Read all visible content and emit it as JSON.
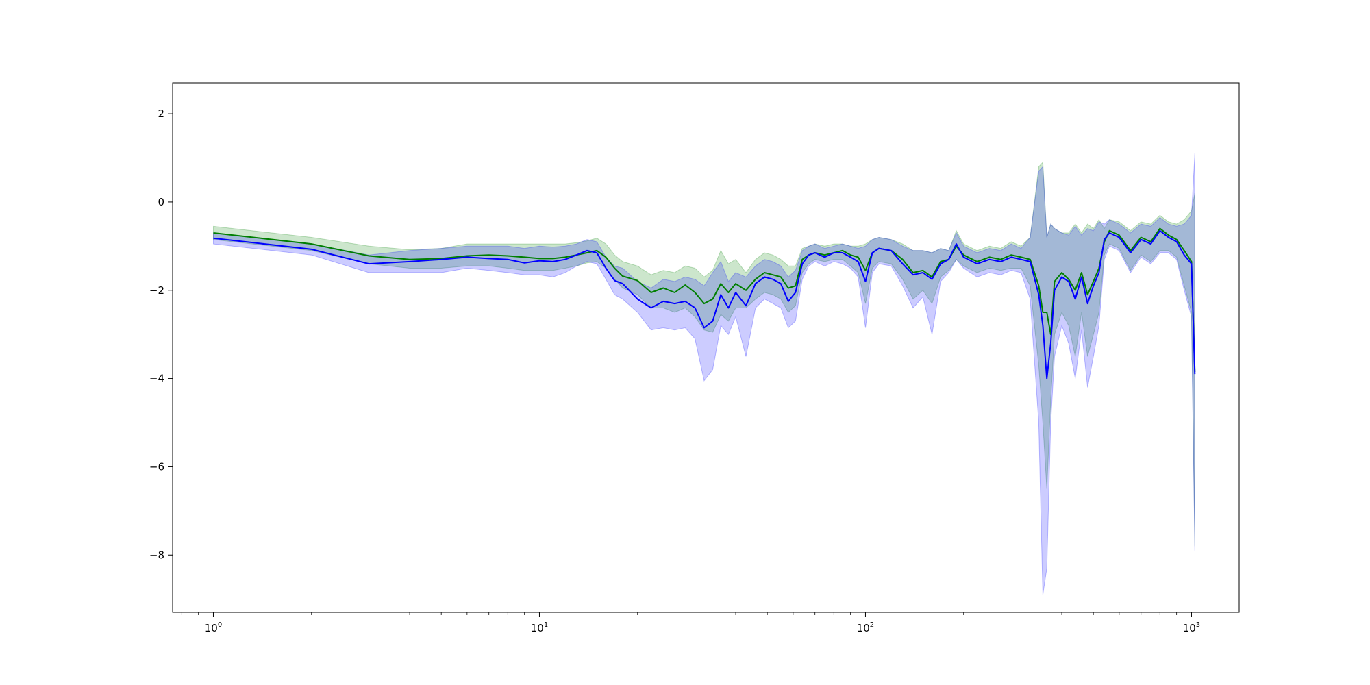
{
  "chart_data": {
    "type": "line",
    "title": "",
    "xlabel": "",
    "ylabel": "",
    "xscale": "log",
    "xlim": [
      0.75,
      1400
    ],
    "ylim": [
      -9.3,
      2.7
    ],
    "grid": false,
    "legend": "none",
    "x_tick_labels": [
      {
        "base": "10",
        "exp": "0",
        "value": 1
      },
      {
        "base": "10",
        "exp": "1",
        "value": 10
      },
      {
        "base": "10",
        "exp": "2",
        "value": 100
      },
      {
        "base": "10",
        "exp": "3",
        "value": 1000
      }
    ],
    "y_tick_labels": [
      {
        "label": "2",
        "value": 2
      },
      {
        "label": "0",
        "value": 0
      },
      {
        "label": "−2",
        "value": -2
      },
      {
        "label": "−4",
        "value": -4
      },
      {
        "label": "−6",
        "value": -6
      },
      {
        "label": "−8",
        "value": -8
      }
    ],
    "series": [
      {
        "color": "#007f00",
        "band_color": "#008000",
        "x": [
          1,
          2,
          3,
          4,
          5,
          6,
          7,
          8,
          9,
          10,
          11,
          12,
          13,
          14,
          15,
          16,
          17,
          18,
          20,
          22,
          24,
          26,
          28,
          30,
          32,
          34,
          36,
          38,
          40,
          43,
          46,
          49,
          52,
          55,
          58,
          61,
          64,
          67,
          70,
          75,
          80,
          85,
          90,
          95,
          100,
          105,
          110,
          120,
          130,
          140,
          150,
          160,
          170,
          180,
          190,
          200,
          220,
          240,
          260,
          280,
          300,
          320,
          340,
          350,
          360,
          370,
          380,
          400,
          420,
          440,
          460,
          480,
          500,
          520,
          540,
          560,
          600,
          650,
          700,
          750,
          800,
          850,
          900,
          950,
          1000,
          1024
        ],
        "y": [
          -0.7,
          -0.95,
          -1.22,
          -1.3,
          -1.28,
          -1.22,
          -1.2,
          -1.22,
          -1.25,
          -1.28,
          -1.28,
          -1.25,
          -1.2,
          -1.15,
          -1.1,
          -1.25,
          -1.5,
          -1.68,
          -1.78,
          -2.05,
          -1.95,
          -2.05,
          -1.88,
          -2.05,
          -2.3,
          -2.2,
          -1.85,
          -2.05,
          -1.85,
          -2.0,
          -1.75,
          -1.6,
          -1.65,
          -1.7,
          -1.95,
          -1.9,
          -1.3,
          -1.2,
          -1.15,
          -1.2,
          -1.15,
          -1.1,
          -1.2,
          -1.25,
          -1.55,
          -1.15,
          -1.05,
          -1.1,
          -1.3,
          -1.6,
          -1.55,
          -1.7,
          -1.35,
          -1.3,
          -1.0,
          -1.2,
          -1.35,
          -1.25,
          -1.3,
          -1.2,
          -1.25,
          -1.3,
          -1.9,
          -2.5,
          -2.5,
          -3.0,
          -1.8,
          -1.6,
          -1.75,
          -2.0,
          -1.6,
          -2.1,
          -1.8,
          -1.5,
          -0.9,
          -0.65,
          -0.75,
          -1.1,
          -0.8,
          -0.9,
          -0.6,
          -0.75,
          -0.85,
          -1.1,
          -1.35,
          -3.85
        ],
        "lower": [
          -0.85,
          -1.1,
          -1.4,
          -1.5,
          -1.5,
          -1.45,
          -1.45,
          -1.5,
          -1.55,
          -1.55,
          -1.55,
          -1.5,
          -1.45,
          -1.38,
          -1.35,
          -1.5,
          -1.75,
          -1.95,
          -2.1,
          -2.4,
          -2.4,
          -2.5,
          -2.4,
          -2.6,
          -2.9,
          -2.95,
          -2.55,
          -2.7,
          -2.4,
          -2.4,
          -2.2,
          -2.05,
          -2.1,
          -2.2,
          -2.5,
          -2.35,
          -1.6,
          -1.4,
          -1.3,
          -1.35,
          -1.3,
          -1.3,
          -1.45,
          -1.6,
          -2.3,
          -1.5,
          -1.35,
          -1.4,
          -1.75,
          -2.2,
          -2.0,
          -2.3,
          -1.7,
          -1.55,
          -1.3,
          -1.45,
          -1.6,
          -1.5,
          -1.55,
          -1.5,
          -1.5,
          -1.9,
          -3.7,
          -5.0,
          -6.5,
          -4.5,
          -3.0,
          -2.5,
          -2.8,
          -3.5,
          -2.5,
          -3.5,
          -3.0,
          -2.5,
          -1.2,
          -0.95,
          -1.05,
          -1.55,
          -1.2,
          -1.35,
          -1.1,
          -1.1,
          -1.25,
          -1.9,
          -2.5,
          -7.8
        ],
        "upper": [
          -0.55,
          -0.8,
          -1.0,
          -1.08,
          -1.05,
          -0.95,
          -0.95,
          -0.95,
          -0.95,
          -0.95,
          -0.95,
          -0.95,
          -0.92,
          -0.88,
          -0.82,
          -0.95,
          -1.2,
          -1.35,
          -1.45,
          -1.65,
          -1.55,
          -1.6,
          -1.45,
          -1.5,
          -1.7,
          -1.55,
          -1.1,
          -1.4,
          -1.3,
          -1.6,
          -1.3,
          -1.15,
          -1.2,
          -1.3,
          -1.45,
          -1.45,
          -1.05,
          -1.0,
          -0.95,
          -1.0,
          -0.95,
          -0.95,
          -1.0,
          -1.0,
          -0.95,
          -0.85,
          -0.8,
          -0.85,
          -0.95,
          -1.1,
          -1.1,
          -1.15,
          -1.05,
          -1.1,
          -0.65,
          -0.95,
          -1.1,
          -1.0,
          -1.05,
          -0.9,
          -1.0,
          -0.8,
          0.8,
          0.9,
          -0.8,
          -0.5,
          -0.6,
          -0.7,
          -0.7,
          -0.5,
          -0.7,
          -0.5,
          -0.6,
          -0.4,
          -0.6,
          -0.4,
          -0.45,
          -0.65,
          -0.45,
          -0.5,
          -0.3,
          -0.45,
          -0.5,
          -0.4,
          -0.2,
          0.2
        ]
      },
      {
        "color": "#0000ff",
        "band_color": "#0000ff",
        "x": [
          1,
          2,
          3,
          4,
          5,
          6,
          7,
          8,
          9,
          10,
          11,
          12,
          13,
          14,
          15,
          16,
          17,
          18,
          20,
          22,
          24,
          26,
          28,
          30,
          32,
          34,
          36,
          38,
          40,
          43,
          46,
          49,
          52,
          55,
          58,
          61,
          64,
          67,
          70,
          75,
          80,
          85,
          90,
          95,
          100,
          105,
          110,
          120,
          130,
          140,
          150,
          160,
          170,
          180,
          190,
          200,
          220,
          240,
          260,
          280,
          300,
          320,
          340,
          350,
          360,
          370,
          380,
          400,
          420,
          440,
          460,
          480,
          500,
          520,
          540,
          560,
          600,
          650,
          700,
          750,
          800,
          850,
          900,
          950,
          1000,
          1024
        ],
        "y": [
          -0.82,
          -1.07,
          -1.4,
          -1.35,
          -1.3,
          -1.25,
          -1.28,
          -1.3,
          -1.38,
          -1.33,
          -1.35,
          -1.3,
          -1.2,
          -1.1,
          -1.15,
          -1.5,
          -1.78,
          -1.85,
          -2.2,
          -2.4,
          -2.25,
          -2.3,
          -2.25,
          -2.4,
          -2.85,
          -2.7,
          -2.1,
          -2.4,
          -2.05,
          -2.35,
          -1.85,
          -1.7,
          -1.75,
          -1.85,
          -2.25,
          -2.05,
          -1.4,
          -1.2,
          -1.15,
          -1.25,
          -1.15,
          -1.15,
          -1.25,
          -1.35,
          -1.8,
          -1.15,
          -1.05,
          -1.1,
          -1.4,
          -1.65,
          -1.6,
          -1.75,
          -1.4,
          -1.3,
          -0.95,
          -1.25,
          -1.4,
          -1.3,
          -1.35,
          -1.25,
          -1.3,
          -1.35,
          -2.1,
          -2.8,
          -4.0,
          -3.2,
          -2.0,
          -1.7,
          -1.8,
          -2.2,
          -1.7,
          -2.3,
          -1.9,
          -1.6,
          -0.85,
          -0.7,
          -0.8,
          -1.15,
          -0.85,
          -0.95,
          -0.65,
          -0.8,
          -0.9,
          -1.2,
          -1.4,
          -3.9
        ],
        "lower": [
          -0.95,
          -1.2,
          -1.6,
          -1.6,
          -1.6,
          -1.5,
          -1.55,
          -1.6,
          -1.65,
          -1.65,
          -1.7,
          -1.6,
          -1.45,
          -1.35,
          -1.4,
          -1.75,
          -2.1,
          -2.2,
          -2.5,
          -2.9,
          -2.85,
          -2.9,
          -2.85,
          -3.1,
          -4.05,
          -3.8,
          -2.8,
          -3.0,
          -2.6,
          -3.5,
          -2.4,
          -2.2,
          -2.3,
          -2.4,
          -2.85,
          -2.7,
          -1.75,
          -1.45,
          -1.35,
          -1.45,
          -1.35,
          -1.4,
          -1.5,
          -1.7,
          -2.85,
          -1.6,
          -1.4,
          -1.45,
          -1.9,
          -2.4,
          -2.15,
          -3.0,
          -1.8,
          -1.6,
          -1.3,
          -1.5,
          -1.7,
          -1.6,
          -1.65,
          -1.55,
          -1.6,
          -2.2,
          -5.0,
          -8.9,
          -8.3,
          -5.0,
          -3.5,
          -2.8,
          -3.2,
          -4.0,
          -2.9,
          -4.2,
          -3.5,
          -2.8,
          -1.3,
          -1.0,
          -1.1,
          -1.6,
          -1.25,
          -1.4,
          -1.15,
          -1.15,
          -1.3,
          -2.0,
          -2.6,
          -7.9
        ],
        "upper": [
          -0.7,
          -0.95,
          -1.2,
          -1.1,
          -1.05,
          -1.0,
          -1.0,
          -1.0,
          -1.05,
          -1.0,
          -1.02,
          -1.0,
          -0.95,
          -0.85,
          -0.9,
          -1.25,
          -1.45,
          -1.5,
          -1.8,
          -1.95,
          -1.75,
          -1.8,
          -1.7,
          -1.75,
          -1.9,
          -1.6,
          -1.35,
          -1.8,
          -1.6,
          -1.7,
          -1.45,
          -1.3,
          -1.35,
          -1.45,
          -1.7,
          -1.55,
          -1.1,
          -1.0,
          -0.95,
          -1.05,
          -1.0,
          -0.95,
          -1.0,
          -1.05,
          -1.0,
          -0.85,
          -0.8,
          -0.85,
          -1.0,
          -1.1,
          -1.1,
          -1.15,
          -1.05,
          -1.1,
          -0.7,
          -1.0,
          -1.15,
          -1.05,
          -1.1,
          -0.95,
          -1.05,
          -0.8,
          0.7,
          0.8,
          -0.8,
          -0.5,
          -0.6,
          -0.7,
          -0.75,
          -0.55,
          -0.75,
          -0.6,
          -0.65,
          -0.45,
          -0.5,
          -0.4,
          -0.5,
          -0.7,
          -0.5,
          -0.55,
          -0.35,
          -0.5,
          -0.55,
          -0.5,
          -0.3,
          1.1
        ]
      }
    ]
  }
}
